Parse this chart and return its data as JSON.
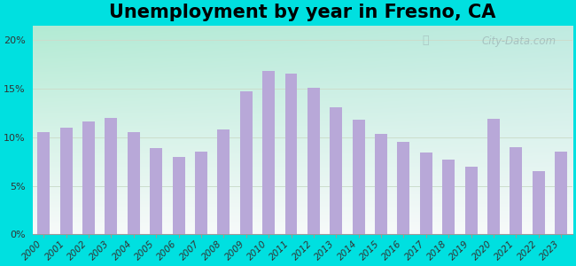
{
  "title": "Unemployment by year in Fresno, CA",
  "years": [
    2000,
    2001,
    2002,
    2003,
    2004,
    2005,
    2006,
    2007,
    2008,
    2009,
    2010,
    2011,
    2012,
    2013,
    2014,
    2015,
    2016,
    2017,
    2018,
    2019,
    2020,
    2021,
    2022,
    2023
  ],
  "values": [
    10.5,
    11.0,
    11.6,
    12.0,
    10.5,
    8.9,
    8.0,
    8.5,
    10.8,
    14.7,
    16.8,
    16.5,
    15.1,
    13.1,
    11.8,
    10.3,
    9.5,
    8.4,
    7.7,
    7.0,
    11.9,
    9.0,
    6.5,
    8.5
  ],
  "bar_color": "#b8a8d8",
  "background_outer": "#00e0e0",
  "ytick_vals": [
    0,
    5,
    10,
    15,
    20
  ],
  "ylabel_ticks": [
    "0%",
    "5%",
    "10%",
    "15%",
    "20%"
  ],
  "ylim": [
    0,
    21.5
  ],
  "watermark": "City-Data.com",
  "title_fontsize": 15,
  "tick_fontsize": 7.5,
  "bar_width": 0.55
}
